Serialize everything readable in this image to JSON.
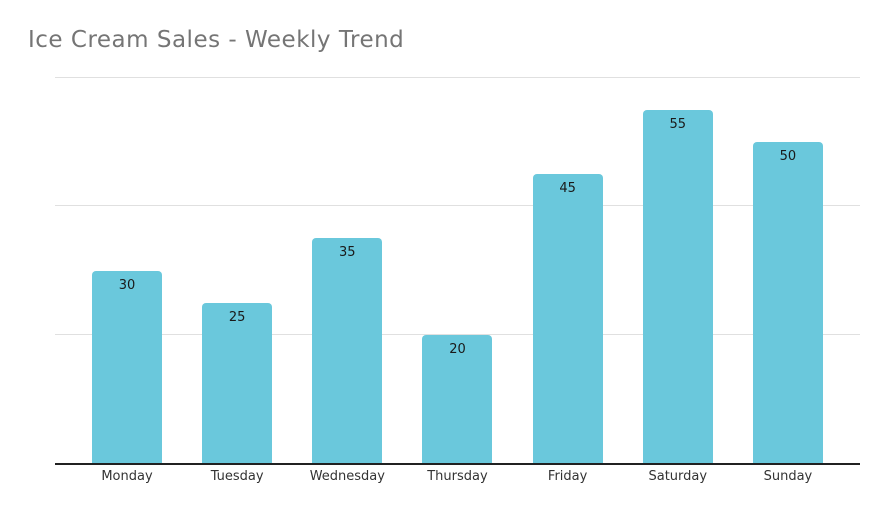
{
  "title": "Ice Cream Sales - Weekly Trend",
  "colors": {
    "background": "#ffffff",
    "bar": "#6AC8DC",
    "title_text": "#757575",
    "gridline": "#e0e0e0",
    "axis_line": "#212121",
    "value_label": "#1a1a1a",
    "day_label": "#333333"
  },
  "chart_data": {
    "type": "bar",
    "title": "Ice Cream Sales - Weekly Trend",
    "categories": [
      "Monday",
      "Tuesday",
      "Wednesday",
      "Thursday",
      "Friday",
      "Saturday",
      "Sunday"
    ],
    "values": [
      30,
      25,
      35,
      20,
      45,
      55,
      50
    ],
    "value_labels": [
      "30",
      "25",
      "35",
      "20",
      "45",
      "55",
      "50"
    ],
    "xlabel": "",
    "ylabel": "",
    "ylim": [
      0,
      60
    ],
    "gridline_values": [
      20,
      40,
      60
    ],
    "y_tick_labels_shown": false,
    "value_labels_shown": true,
    "grid": true,
    "legend": false,
    "legend_position": "none"
  }
}
